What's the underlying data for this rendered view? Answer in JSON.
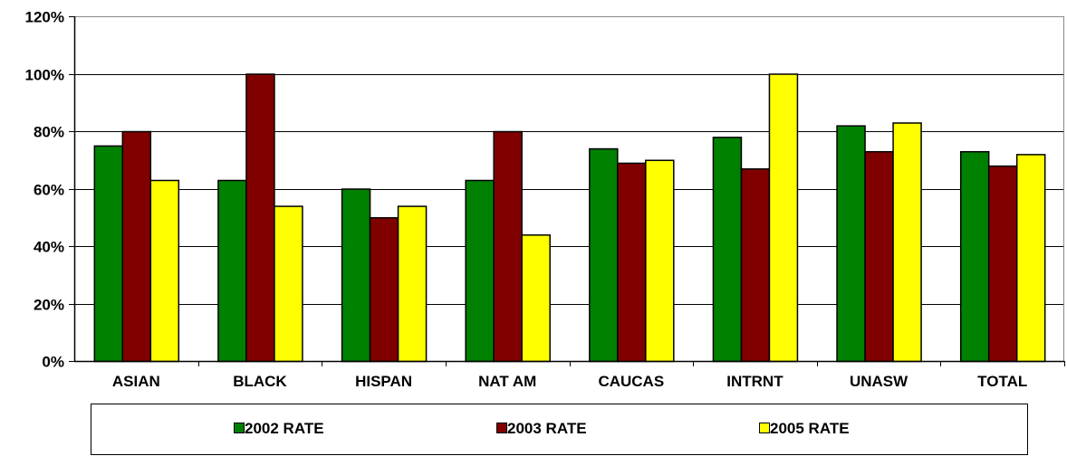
{
  "chart_data": {
    "type": "bar",
    "categories": [
      "ASIAN",
      "BLACK",
      "HISPAN",
      "NAT AM",
      "CAUCAS",
      "INTRNT",
      "UNASW",
      "TOTAL"
    ],
    "series": [
      {
        "name": "2002 RATE",
        "color": "#008000",
        "values": [
          75,
          63,
          60,
          63,
          74,
          78,
          82,
          73
        ]
      },
      {
        "name": "2003 RATE",
        "color": "#800000",
        "values": [
          80,
          100,
          50,
          80,
          69,
          67,
          73,
          68
        ]
      },
      {
        "name": "2005 RATE",
        "color": "#ffff00",
        "values": [
          63,
          54,
          54,
          44,
          70,
          100,
          83,
          72
        ]
      }
    ],
    "ylim": [
      0,
      120
    ],
    "yticks": [
      "0%",
      "20%",
      "40%",
      "60%",
      "80%",
      "100%",
      "120%"
    ],
    "ytick_values": [
      0,
      20,
      40,
      60,
      80,
      100,
      120
    ],
    "grid": true,
    "legend_position": "bottom"
  }
}
